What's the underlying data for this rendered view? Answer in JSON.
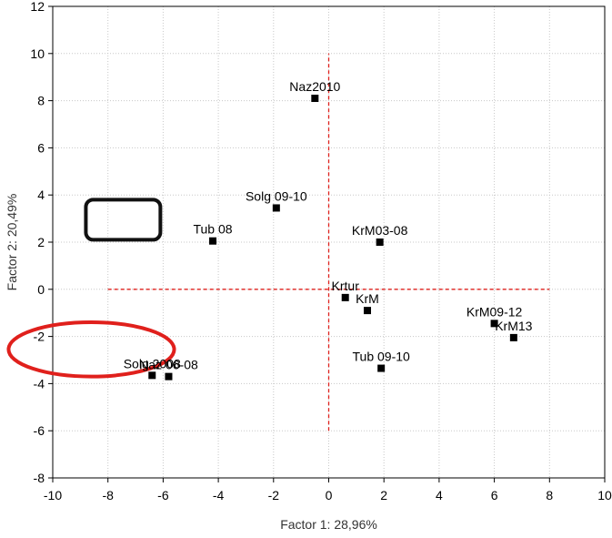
{
  "chart_data": {
    "type": "scatter",
    "xlabel": "Factor 1: 28,96%",
    "ylabel": "Factor 2: 20,49%",
    "xlim": [
      -10,
      10
    ],
    "ylim": [
      -8,
      12
    ],
    "x_ticks": [
      -10,
      -8,
      -6,
      -4,
      -2,
      0,
      2,
      4,
      6,
      8,
      10
    ],
    "y_ticks": [
      -8,
      -6,
      -4,
      -2,
      0,
      2,
      4,
      6,
      8,
      10,
      12
    ],
    "grid": true,
    "points": [
      {
        "label": "Naz2010",
        "x": -0.5,
        "y": 8.1
      },
      {
        "label": "Solg 09-10",
        "x": -1.9,
        "y": 3.45
      },
      {
        "label": "Tub 08",
        "x": -4.2,
        "y": 2.05
      },
      {
        "label": "KrM03-08",
        "x": 1.85,
        "y": 2.0
      },
      {
        "label": "Krtur",
        "x": 0.6,
        "y": -0.35
      },
      {
        "label": "KrM",
        "x": 1.4,
        "y": -0.9
      },
      {
        "label": "KrM09-12",
        "x": 6.0,
        "y": -1.45
      },
      {
        "label": "KrM13",
        "x": 6.7,
        "y": -2.05
      },
      {
        "label": "Tub 09-10",
        "x": 1.9,
        "y": -3.35
      },
      {
        "label": "Solg 2008",
        "x": -6.4,
        "y": -3.65
      },
      {
        "label": "Naz 06-08",
        "x": -5.8,
        "y": -3.7
      }
    ],
    "reference_lines": {
      "color": "#e0201c",
      "horizontal": {
        "y": 0,
        "x_from": -8,
        "x_to": 8
      },
      "vertical": {
        "x": 0,
        "y_from": -6,
        "y_to": 10
      }
    },
    "annotations": [
      {
        "shape": "rounded-rectangle",
        "color": "#111111",
        "x_range": [
          -8.8,
          -6.1
        ],
        "y_range": [
          2.1,
          3.8
        ]
      },
      {
        "shape": "ellipse",
        "color": "#e0201c",
        "x_range": [
          -11.6,
          -5.6
        ],
        "y_range": [
          -3.7,
          -1.4
        ]
      }
    ]
  }
}
